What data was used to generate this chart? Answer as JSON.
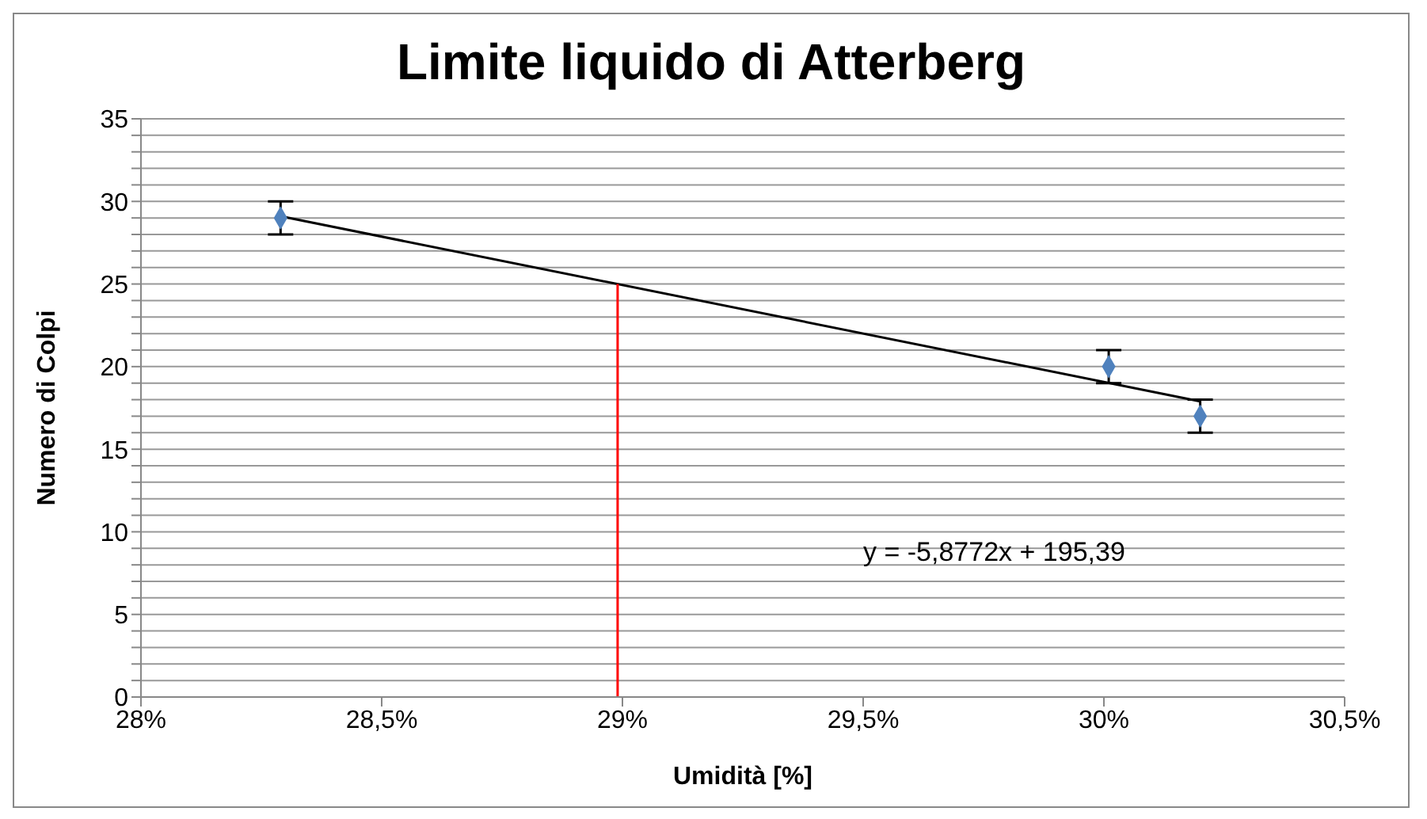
{
  "chart_data": {
    "type": "scatter",
    "title": "Limite liquido di Atterberg",
    "xlabel": "Umidità [%]",
    "ylabel": "Numero di Colpi",
    "xlim": [
      28,
      30.5
    ],
    "xticks": [
      {
        "value": 28,
        "label": "28%"
      },
      {
        "value": 28.5,
        "label": "28,5%"
      },
      {
        "value": 29,
        "label": "29%"
      },
      {
        "value": 29.5,
        "label": "29,5%"
      },
      {
        "value": 30,
        "label": "30%"
      },
      {
        "value": 30.5,
        "label": "30,5%"
      }
    ],
    "ylim": [
      0,
      35
    ],
    "yticks": [
      0,
      {
        "value": 1,
        "label": null
      },
      {
        "value": 2,
        "label": null
      },
      {
        "value": 3,
        "label": null
      },
      {
        "value": 4,
        "label": null
      },
      5,
      {
        "value": 6,
        "label": null
      },
      {
        "value": 7,
        "label": null
      },
      {
        "value": 8,
        "label": null
      },
      {
        "value": 9,
        "label": null
      },
      10,
      {
        "value": 11,
        "label": null
      },
      {
        "value": 12,
        "label": null
      },
      {
        "value": 13,
        "label": null
      },
      {
        "value": 14,
        "label": null
      },
      15,
      {
        "value": 16,
        "label": null
      },
      {
        "value": 17,
        "label": null
      },
      {
        "value": 18,
        "label": null
      },
      {
        "value": 19,
        "label": null
      },
      20,
      {
        "value": 21,
        "label": null
      },
      {
        "value": 22,
        "label": null
      },
      {
        "value": 23,
        "label": null
      },
      {
        "value": 24,
        "label": null
      },
      25,
      {
        "value": 26,
        "label": null
      },
      {
        "value": 27,
        "label": null
      },
      {
        "value": 28,
        "label": null
      },
      {
        "value": 29,
        "label": null
      },
      30,
      {
        "value": 31,
        "label": null
      },
      {
        "value": 32,
        "label": null
      },
      {
        "value": 33,
        "label": null
      },
      {
        "value": 34,
        "label": null
      },
      35
    ],
    "grid": "y",
    "series": [
      {
        "marker": "diamond",
        "color": "#4f81bd",
        "x": [
          28.29,
          30.01,
          30.2
        ],
        "values": [
          29,
          20,
          17
        ],
        "errors": [
          1,
          1,
          1
        ]
      },
      {
        "type": "line",
        "marker": "none",
        "color": "#000000",
        "x": [
          28.29,
          30.2
        ],
        "values": [
          29.1,
          17.9
        ]
      },
      {
        "type": "line",
        "marker": "none",
        "color": "#ff0000",
        "x": [
          28.99,
          28.99
        ],
        "values": [
          0,
          25
        ]
      }
    ],
    "annotations": [
      "y = -5,8772x + 195,39"
    ]
  }
}
